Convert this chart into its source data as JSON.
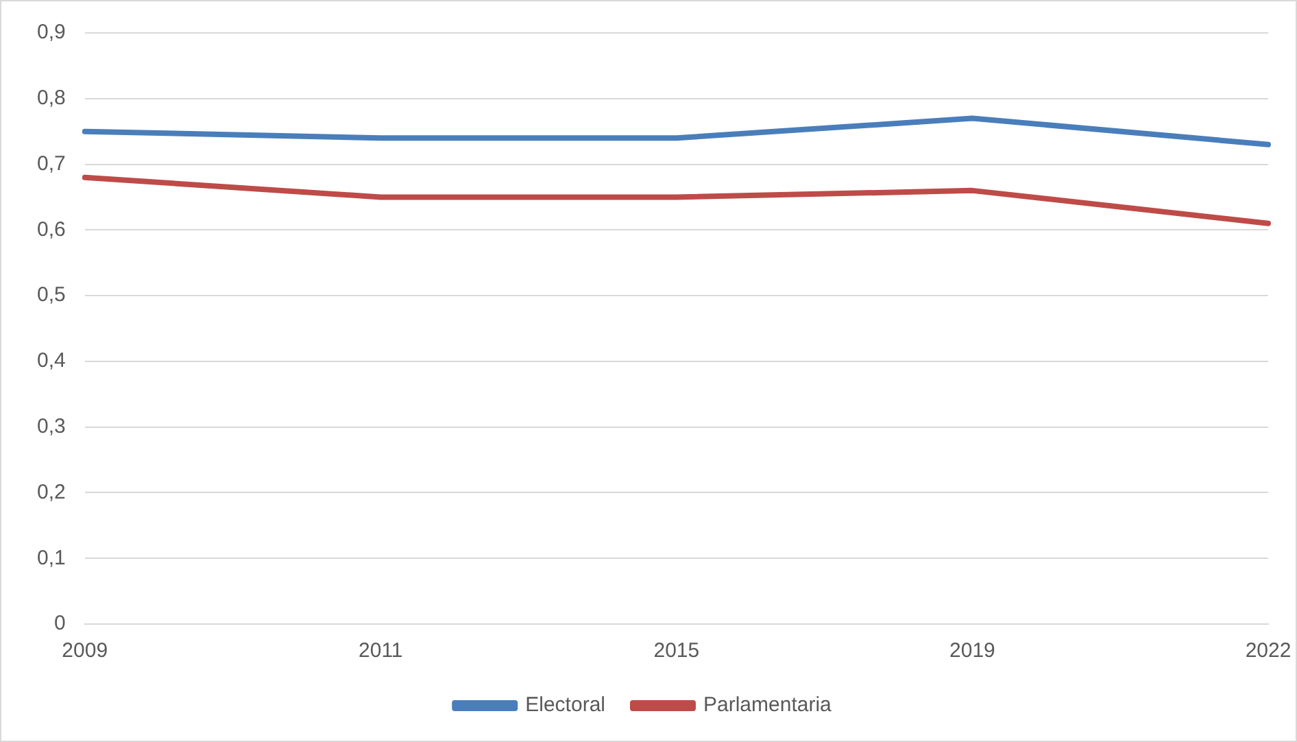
{
  "chart_data": {
    "type": "line",
    "categories": [
      "2009",
      "2011",
      "2015",
      "2019",
      "2022"
    ],
    "series": [
      {
        "name": "Electoral",
        "color": "#4a7ebb",
        "values": [
          0.75,
          0.74,
          0.74,
          0.77,
          0.73
        ]
      },
      {
        "name": "Parlamentaria",
        "color": "#be4b48",
        "values": [
          0.68,
          0.65,
          0.65,
          0.66,
          0.61
        ]
      }
    ],
    "ylim": [
      0,
      0.9
    ],
    "yticks": [
      0,
      {
        "value": 0.1,
        "label": "0,1"
      },
      {
        "value": 0.2,
        "label": "0,2"
      },
      {
        "value": 0.3,
        "label": "0,3"
      },
      {
        "value": 0.4,
        "label": "0,4"
      },
      {
        "value": 0.5,
        "label": "0,5"
      },
      {
        "value": 0.6,
        "label": "0,6"
      },
      {
        "value": 0.7,
        "label": "0,7"
      },
      {
        "value": 0.8,
        "label": "0,8"
      },
      {
        "value": 0.9,
        "label": "0,9"
      }
    ],
    "grid": "y",
    "legend": "bottom",
    "marker": "none",
    "line_style": "solid"
  }
}
